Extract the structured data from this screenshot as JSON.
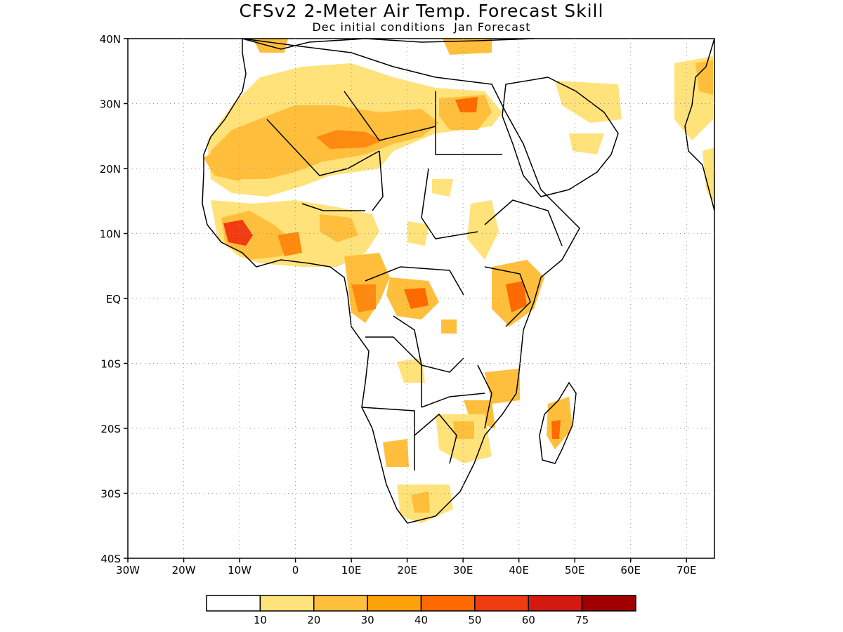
{
  "title": "CFSv2 2-Meter Air Temp. Forecast Skill",
  "subtitle": "Dec initial conditions  Jan Forecast",
  "axes": {
    "x_ticks": [
      "30W",
      "20W",
      "10W",
      "0",
      "10E",
      "20E",
      "30E",
      "40E",
      "50E",
      "60E",
      "70E"
    ],
    "y_ticks": [
      "40N",
      "30N",
      "20N",
      "10N",
      "EQ",
      "10S",
      "20S",
      "30S",
      "40S"
    ],
    "lon_range": [
      -30,
      75
    ],
    "lat_range": [
      -40,
      40
    ],
    "grid": "dotted"
  },
  "legend": {
    "colors": [
      "#ffffff",
      "#ffe27a",
      "#ffbf3c",
      "#ffa10a",
      "#ff6a00",
      "#f03c10",
      "#d41a10",
      "#a00000"
    ],
    "labels": [
      "10",
      "20",
      "30",
      "40",
      "50",
      "60",
      "75"
    ]
  },
  "skill_regions": [
    {
      "lon": -10,
      "lat": 28,
      "level": 3
    },
    {
      "lon": 5,
      "lat": 30,
      "level": 2
    },
    {
      "lon": 15,
      "lat": 24,
      "level": 4
    },
    {
      "lon": 30,
      "lat": 29,
      "level": 5
    },
    {
      "lon": -12,
      "lat": 10,
      "level": 6
    },
    {
      "lon": 20,
      "lat": 0,
      "level": 4
    },
    {
      "lon": 38,
      "lat": 0,
      "level": 4
    },
    {
      "lon": 46,
      "lat": -20,
      "level": 4
    },
    {
      "lon": 18,
      "lat": -30,
      "level": 3
    }
  ]
}
